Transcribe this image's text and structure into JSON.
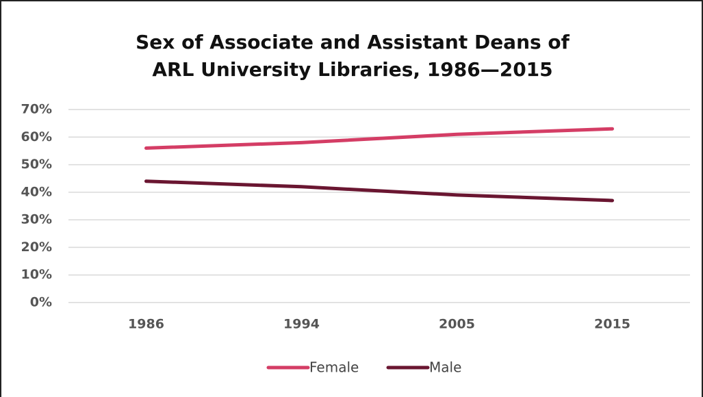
{
  "chart_data": {
    "type": "line",
    "title": "Sex of Associate and Assistant Deans of ARL University Libraries, 1986—2015",
    "categories": [
      "1986",
      "1994",
      "2005",
      "2015"
    ],
    "series": [
      {
        "name": "Female",
        "color": "#d43d65",
        "values": [
          56,
          58,
          61,
          63
        ]
      },
      {
        "name": "Male",
        "color": "#6a1631",
        "values": [
          44,
          42,
          39,
          37
        ]
      }
    ],
    "ylim": [
      0,
      70
    ],
    "yticks": [
      {
        "value": 0,
        "label": "0%"
      },
      {
        "value": 10,
        "label": "10%"
      },
      {
        "value": 20,
        "label": "20%"
      },
      {
        "value": 30,
        "label": "30%"
      },
      {
        "value": 40,
        "label": "40%"
      },
      {
        "value": 50,
        "label": "50%"
      },
      {
        "value": 60,
        "label": "60%"
      },
      {
        "value": 70,
        "label": "70%"
      }
    ],
    "grid": true,
    "legend": "bottom"
  }
}
